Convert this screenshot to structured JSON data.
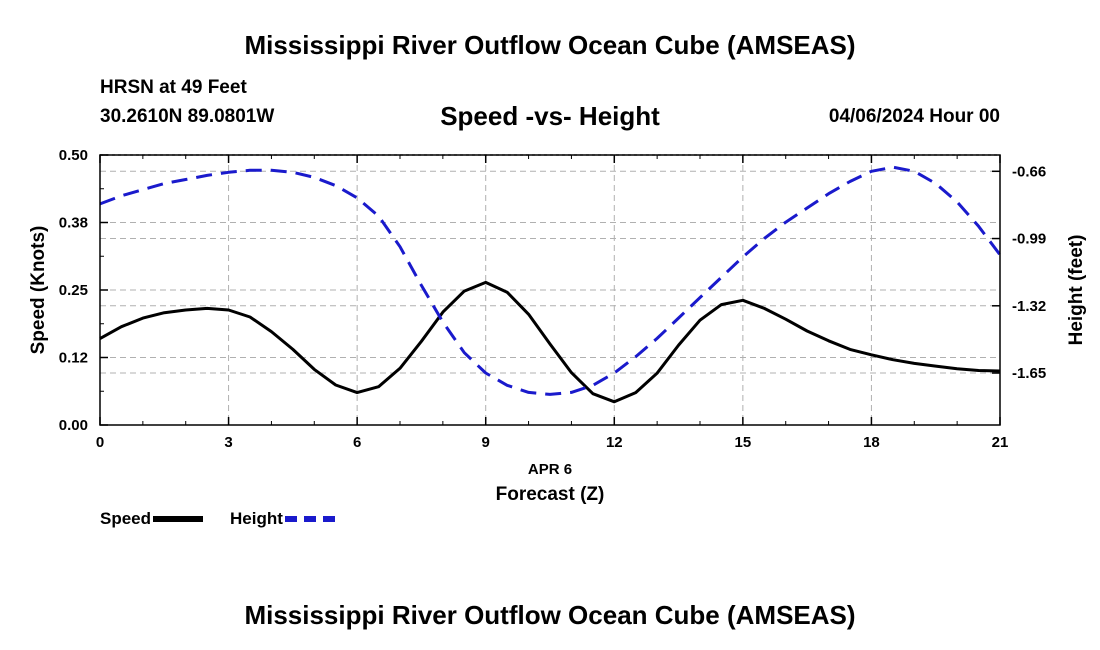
{
  "main_title": "Mississippi River Outflow Ocean Cube (AMSEAS)",
  "station": "HRSN at 49 Feet",
  "coords": "30.2610N  89.0801W",
  "chart_title": "Speed -vs- Height",
  "date_label": "04/06/2024 Hour 00",
  "bottom_title": "Mississippi River Outflow Ocean Cube (AMSEAS)",
  "colors": {
    "speed": "#000000",
    "height": "#1a1acc",
    "grid": "#b0b0b0"
  },
  "chart_data": {
    "type": "line",
    "title": "Speed -vs- Height",
    "xlabel_date": "APR 6",
    "xlabel": "Forecast (Z)",
    "ylabel": "Speed (Knots)",
    "y2label": "Height (feet)",
    "xlim": [
      0,
      21
    ],
    "ylim": [
      0,
      0.5
    ],
    "y2lim": [
      -1.905,
      -0.58
    ],
    "xticks": [
      0,
      3,
      6,
      9,
      12,
      15,
      18,
      21
    ],
    "yticks": [
      0.0,
      0.125,
      0.25,
      0.375,
      0.5
    ],
    "ytick_labels": [
      "0.00",
      "0.12",
      "0.25",
      "0.38",
      "0.50"
    ],
    "y2ticks": [
      -0.66,
      -0.99,
      -1.32,
      -1.65
    ],
    "y2tick_labels": [
      "-0.66",
      "-0.99",
      "-1.32",
      "-1.65"
    ],
    "grid": true,
    "series": [
      {
        "name": "Speed",
        "axis": "left",
        "style": "solid",
        "x": [
          0,
          0.5,
          1,
          1.5,
          2,
          2.5,
          3,
          3.5,
          4,
          4.5,
          5,
          5.5,
          6,
          6.5,
          7,
          7.5,
          8,
          8.5,
          9,
          9.5,
          10,
          10.5,
          11,
          11.5,
          12,
          12.5,
          13,
          13.5,
          14,
          14.5,
          15,
          15.5,
          16,
          16.5,
          17,
          17.5,
          18,
          18.5,
          19,
          19.5,
          20,
          20.5,
          21
        ],
        "values": [
          0.16,
          0.182,
          0.198,
          0.208,
          0.213,
          0.216,
          0.213,
          0.2,
          0.173,
          0.14,
          0.103,
          0.074,
          0.06,
          0.071,
          0.105,
          0.155,
          0.209,
          0.248,
          0.264,
          0.246,
          0.205,
          0.15,
          0.097,
          0.058,
          0.043,
          0.06,
          0.096,
          0.148,
          0.194,
          0.223,
          0.231,
          0.216,
          0.196,
          0.174,
          0.156,
          0.14,
          0.13,
          0.121,
          0.114,
          0.109,
          0.104,
          0.101,
          0.1
        ]
      },
      {
        "name": "Height",
        "axis": "right",
        "style": "dashed",
        "x": [
          0,
          0.5,
          1,
          1.5,
          2,
          2.5,
          3,
          3.5,
          4,
          4.5,
          5,
          5.5,
          6,
          6.5,
          7,
          7.5,
          8,
          8.5,
          9,
          9.5,
          10,
          10.5,
          11,
          11.5,
          12,
          12.5,
          13,
          13.5,
          14,
          14.5,
          15,
          15.5,
          16,
          16.5,
          17,
          17.5,
          18,
          18.5,
          19,
          19.5,
          20,
          20.5,
          21
        ],
        "values": [
          -0.82,
          -0.78,
          -0.75,
          -0.72,
          -0.7,
          -0.68,
          -0.665,
          -0.655,
          -0.655,
          -0.665,
          -0.69,
          -0.73,
          -0.79,
          -0.88,
          -1.03,
          -1.22,
          -1.4,
          -1.55,
          -1.65,
          -1.71,
          -1.745,
          -1.755,
          -1.745,
          -1.71,
          -1.65,
          -1.57,
          -1.48,
          -1.38,
          -1.28,
          -1.18,
          -1.08,
          -0.99,
          -0.91,
          -0.84,
          -0.77,
          -0.71,
          -0.66,
          -0.64,
          -0.66,
          -0.72,
          -0.81,
          -0.93,
          -1.07
        ]
      }
    ]
  },
  "legend": {
    "speed": "Speed",
    "height": "Height"
  }
}
